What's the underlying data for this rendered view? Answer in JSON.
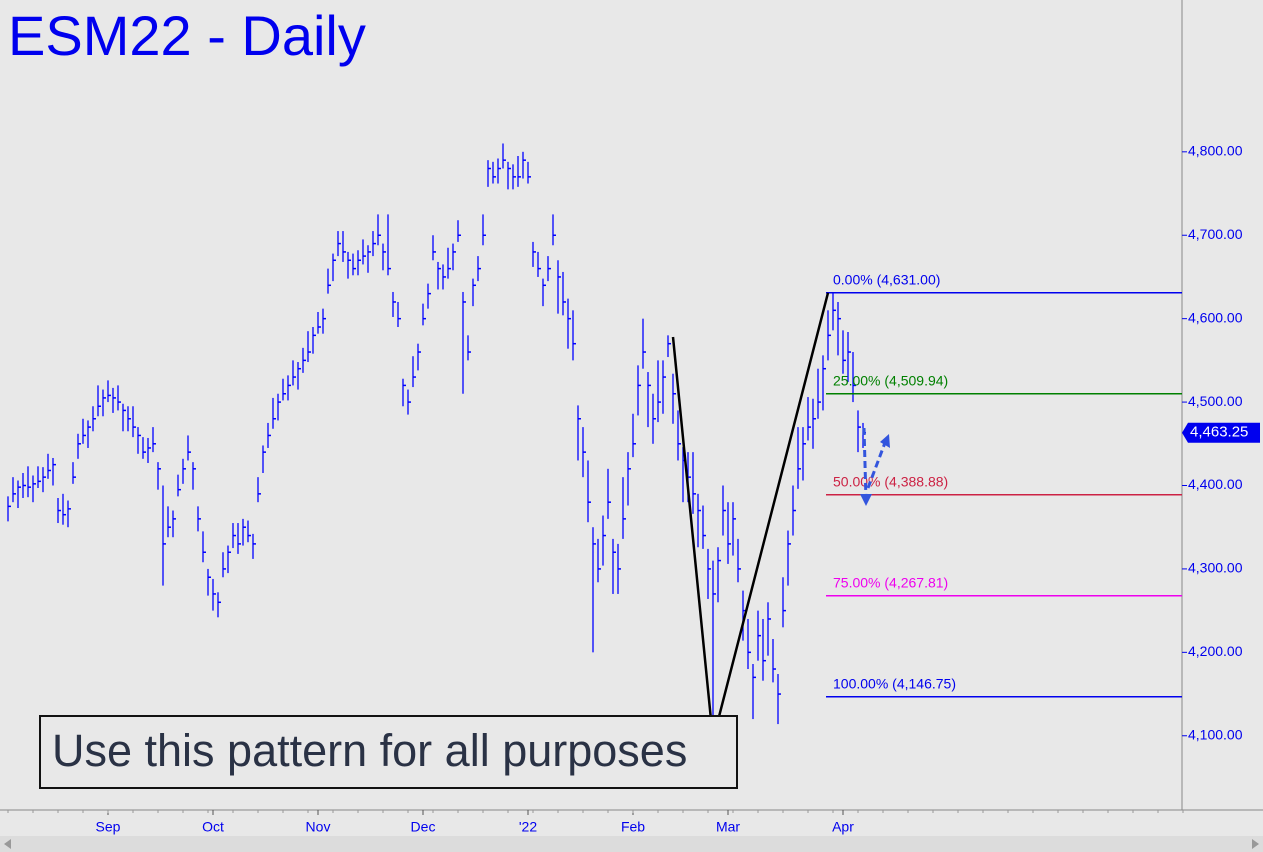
{
  "chart_data": {
    "type": "ohlc",
    "title": "ESM22 - Daily",
    "annotation": "Use this pattern for all purposes",
    "color": "#0000ff",
    "xlim": [
      -1.6,
      234.8
    ],
    "ylim": [
      4011,
      4982
    ],
    "xticks": [
      {
        "value": 20,
        "label": "Sep"
      },
      {
        "value": 41,
        "label": "Oct"
      },
      {
        "value": 62,
        "label": "Nov"
      },
      {
        "value": 83,
        "label": "Dec"
      },
      {
        "value": 104,
        "label": "'22"
      },
      {
        "value": 125,
        "label": "Feb"
      },
      {
        "value": 144,
        "label": "Mar"
      },
      {
        "value": 167,
        "label": "Apr"
      }
    ],
    "yticks": [
      {
        "value": 4100,
        "label": "4,100.00"
      },
      {
        "value": 4200,
        "label": "4,200.00"
      },
      {
        "value": 4300,
        "label": "4,300.00"
      },
      {
        "value": 4400,
        "label": "4,400.00"
      },
      {
        "value": 4500,
        "label": "4,500.00"
      },
      {
        "value": 4600,
        "label": "4,600.00"
      },
      {
        "value": 4700,
        "label": "4,700.00"
      },
      {
        "value": 4800,
        "label": "4,800.00"
      }
    ],
    "last_price_label": "4,463.25",
    "high": [
      4387,
      4410,
      4406,
      4415,
      4423,
      4412,
      4423,
      4422,
      4438,
      4433,
      4385,
      4390,
      4382,
      4428,
      4462,
      4480,
      4478,
      4495,
      4520,
      4515,
      4526,
      4517,
      4520,
      4498,
      4495,
      4495,
      4470,
      4458,
      4457,
      4470,
      4428,
      4400,
      4375,
      4370,
      4413,
      4432,
      4460,
      4428,
      4375,
      4345,
      4300,
      4288,
      4272,
      4320,
      4328,
      4355,
      4355,
      4360,
      4358,
      4342,
      4410,
      4448,
      4475,
      4505,
      4510,
      4528,
      4532,
      4550,
      4548,
      4565,
      4585,
      4590,
      4608,
      4612,
      4660,
      4678,
      4705,
      4705,
      4680,
      4678,
      4682,
      4695,
      4688,
      4705,
      4725,
      4690,
      4725,
      4632,
      4620,
      4528,
      4515,
      4555,
      4570,
      4618,
      4642,
      4700,
      4668,
      4665,
      4685,
      4690,
      4718,
      4632,
      4580,
      4648,
      4675,
      4725,
      4790,
      4788,
      4792,
      4810,
      4788,
      4785,
      4795,
      4800,
      4788,
      4692,
      4680,
      4648,
      4675,
      4725,
      4670,
      4656,
      4624,
      4610,
      4496,
      4470,
      4430,
      4350,
      4336,
      4364,
      4420,
      4336,
      4330,
      4410,
      4440,
      4486,
      4544,
      4600,
      4536,
      4510,
      4550,
      4550,
      4580,
      4534,
      4490,
      4446,
      4440,
      4440,
      4390,
      4376,
      4324,
      4310,
      4326,
      4400,
      4380,
      4380,
      4336,
      4274,
      4240,
      4186,
      4250,
      4240,
      4260,
      4216,
      4174,
      4290,
      4346,
      4400,
      4470,
      4470,
      4506,
      4504,
      4540,
      4556,
      4610,
      4631,
      4620,
      4586,
      4584,
      4560,
      4490,
      4475
    ],
    "low": [
      4357,
      4380,
      4373,
      4385,
      4386,
      4380,
      4397,
      4392,
      4408,
      4400,
      4355,
      4353,
      4350,
      4402,
      4432,
      4450,
      4445,
      4465,
      4483,
      4483,
      4500,
      4487,
      4490,
      4465,
      4465,
      4458,
      4438,
      4432,
      4427,
      4440,
      4395,
      4280,
      4338,
      4338,
      4387,
      4402,
      4430,
      4395,
      4345,
      4308,
      4268,
      4250,
      4242,
      4290,
      4295,
      4325,
      4318,
      4328,
      4332,
      4312,
      4380,
      4415,
      4445,
      4468,
      4478,
      4502,
      4502,
      4520,
      4515,
      4535,
      4548,
      4558,
      4582,
      4582,
      4630,
      4645,
      4675,
      4668,
      4648,
      4652,
      4652,
      4665,
      4655,
      4675,
      4688,
      4658,
      4652,
      4602,
      4590,
      4495,
      4485,
      4518,
      4538,
      4592,
      4612,
      4670,
      4635,
      4635,
      4648,
      4658,
      4692,
      4510,
      4550,
      4615,
      4645,
      4688,
      4758,
      4762,
      4762,
      4780,
      4755,
      4755,
      4758,
      4768,
      4762,
      4662,
      4650,
      4615,
      4645,
      4688,
      4606,
      4604,
      4564,
      4550,
      4430,
      4410,
      4356,
      4200,
      4284,
      4304,
      4360,
      4270,
      4270,
      4336,
      4376,
      4434,
      4484,
      4540,
      4470,
      4450,
      4476,
      4486,
      4554,
      4474,
      4430,
      4380,
      4380,
      4366,
      4326,
      4324,
      4264,
      4100,
      4260,
      4340,
      4306,
      4316,
      4284,
      4214,
      4180,
      4120,
      4190,
      4166,
      4196,
      4164,
      4114,
      4230,
      4280,
      4340,
      4396,
      4406,
      4454,
      4444,
      4480,
      4490,
      4550,
      4586,
      4556,
      4534,
      4524,
      4500,
      4440,
      4445
    ],
    "close": [
      4375,
      4390,
      4398,
      4400,
      4398,
      4402,
      4405,
      4410,
      4418,
      4425,
      4370,
      4365,
      4372,
      4410,
      4450,
      4460,
      4470,
      4480,
      4495,
      4505,
      4508,
      4505,
      4500,
      4490,
      4480,
      4470,
      4460,
      4440,
      4445,
      4450,
      4420,
      4330,
      4350,
      4360,
      4395,
      4420,
      4440,
      4420,
      4360,
      4320,
      4290,
      4270,
      4260,
      4300,
      4320,
      4340,
      4330,
      4350,
      4340,
      4330,
      4390,
      4440,
      4460,
      4480,
      4500,
      4510,
      4520,
      4530,
      4540,
      4550,
      4560,
      4580,
      4590,
      4600,
      4640,
      4670,
      4690,
      4680,
      4670,
      4660,
      4670,
      4675,
      4680,
      4690,
      4700,
      4680,
      4660,
      4620,
      4600,
      4520,
      4500,
      4530,
      4560,
      4600,
      4630,
      4680,
      4660,
      4650,
      4660,
      4680,
      4700,
      4620,
      4560,
      4640,
      4660,
      4700,
      4780,
      4770,
      4780,
      4790,
      4780,
      4770,
      4770,
      4790,
      4770,
      4680,
      4660,
      4640,
      4660,
      4700,
      4650,
      4620,
      4600,
      4570,
      4480,
      4440,
      4380,
      4330,
      4300,
      4340,
      4380,
      4320,
      4300,
      4360,
      4420,
      4450,
      4520,
      4560,
      4520,
      4480,
      4500,
      4530,
      4570,
      4510,
      4450,
      4430,
      4410,
      4390,
      4370,
      4340,
      4300,
      4270,
      4310,
      4370,
      4330,
      4360,
      4300,
      4250,
      4200,
      4170,
      4220,
      4190,
      4240,
      4180,
      4150,
      4250,
      4330,
      4370,
      4420,
      4450,
      4470,
      4480,
      4500,
      4540,
      4580,
      4610,
      4600,
      4550,
      4560,
      4520,
      4470,
      4463.25
    ],
    "pattern": {
      "x": [
        133,
        141,
        164
      ],
      "y": [
        4578,
        4095,
        4631
      ],
      "color": "#000000"
    },
    "fib_levels": [
      {
        "label": "0.00% (4,631.00)",
        "value": 4631,
        "color": "#0000ee"
      },
      {
        "label": "25.00% (4,509.94)",
        "value": 4509.94,
        "color": "#008000"
      },
      {
        "label": "50.00% (4,388.88)",
        "value": 4388.88,
        "color": "#cc2244"
      },
      {
        "label": "75.00% (4,267.81)",
        "value": 4267.81,
        "color": "#ee00ee"
      },
      {
        "label": "100.00% (4,146.75)",
        "value": 4146.75,
        "color": "#0000ee"
      }
    ]
  }
}
